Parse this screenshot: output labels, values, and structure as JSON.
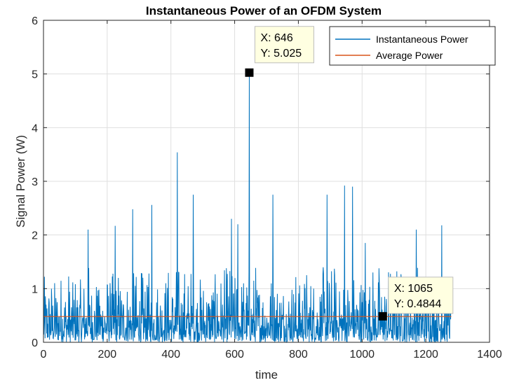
{
  "chart_data": {
    "type": "line",
    "title": "Instantaneous Power of an OFDM System",
    "xlabel": "time",
    "ylabel": "Signal Power (W)",
    "xlim": [
      0,
      1400
    ],
    "ylim": [
      0,
      6
    ],
    "xticks": [
      "0",
      "200",
      "400",
      "600",
      "800",
      "1000",
      "1200",
      "1400"
    ],
    "yticks": [
      "0",
      "1",
      "2",
      "3",
      "4",
      "5",
      "6"
    ],
    "grid": true,
    "legend_position": "top-right",
    "series": [
      {
        "name": "Instantaneous Power",
        "color": "#0072BD",
        "num_samples": 1280,
        "peaks": [
          [
            140,
            2.1
          ],
          [
            225,
            2.17
          ],
          [
            280,
            2.48
          ],
          [
            340,
            2.56
          ],
          [
            420,
            3.54
          ],
          [
            470,
            2.75
          ],
          [
            590,
            2.3
          ],
          [
            610,
            2.2
          ],
          [
            646,
            5.025
          ],
          [
            720,
            2.75
          ],
          [
            890,
            2.75
          ],
          [
            945,
            2.92
          ],
          [
            970,
            2.9
          ],
          [
            1010,
            1.85
          ],
          [
            1170,
            2.1
          ],
          [
            1250,
            2.18
          ],
          [
            1280,
            0.95
          ]
        ]
      },
      {
        "name": "Average Power",
        "color": "#D95319",
        "value": 0.48
      }
    ],
    "datatips": [
      {
        "x_label": "X: 646",
        "y_label": "Y: 5.025",
        "x": 646,
        "y": 5.025
      },
      {
        "x_label": "X: 1065",
        "y_label": "Y: 0.4844",
        "x": 1065,
        "y": 0.4844
      }
    ]
  }
}
